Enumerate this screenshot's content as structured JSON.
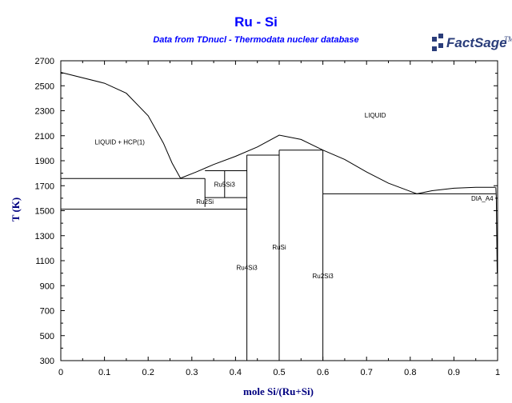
{
  "header": {
    "title": "Ru - Si",
    "subtitle": "Data from TDnucl - Thermodata nuclear database",
    "logo_text": "FactSage",
    "logo_mark": "TM"
  },
  "chart_data": {
    "type": "line",
    "title": "Ru - Si",
    "xlabel": "mole Si/(Ru+Si)",
    "ylabel": "T (K)",
    "xlim": [
      0,
      1
    ],
    "ylim": [
      300,
      2700
    ],
    "xticks": [
      "0",
      "0.1",
      "0.2",
      "0.3",
      "0.4",
      "0.5",
      "0.6",
      "0.7",
      "0.8",
      "0.9",
      "1"
    ],
    "yticks": [
      "300",
      "500",
      "700",
      "900",
      "1100",
      "1300",
      "1500",
      "1700",
      "1900",
      "2100",
      "2300",
      "2500",
      "2700"
    ],
    "grid": false,
    "series": [
      {
        "points": [
          [
            0,
            2607
          ],
          [
            0.1,
            2520
          ],
          [
            0.15,
            2440
          ],
          [
            0.2,
            2260
          ],
          [
            0.235,
            2040
          ],
          [
            0.255,
            1880
          ],
          [
            0.274,
            1760
          ]
        ]
      },
      {
        "points": [
          [
            0.274,
            1760
          ],
          [
            0.31,
            1810
          ],
          [
            0.35,
            1870
          ],
          [
            0.4,
            1935
          ],
          [
            0.45,
            2010
          ],
          [
            0.5,
            2105
          ],
          [
            0.55,
            2070
          ],
          [
            0.6,
            1985
          ],
          [
            0.65,
            1910
          ],
          [
            0.7,
            1810
          ],
          [
            0.75,
            1720
          ],
          [
            0.8,
            1655
          ],
          [
            0.815,
            1635
          ],
          [
            0.85,
            1660
          ],
          [
            0.9,
            1680
          ],
          [
            0.95,
            1687
          ],
          [
            0.995,
            1687
          ]
        ]
      },
      {
        "points": [
          [
            0.996,
            1687
          ],
          [
            0.997,
            1600
          ],
          [
            0.999,
            1000
          ]
        ]
      },
      {
        "points": [
          [
            0,
            1758
          ],
          [
            0.33,
            1758
          ]
        ]
      },
      {
        "points": [
          [
            0,
            1512
          ],
          [
            0.426,
            1512
          ]
        ]
      },
      {
        "points": [
          [
            0.33,
            1820
          ],
          [
            0.426,
            1820
          ]
        ]
      },
      {
        "points": [
          [
            0.33,
            1758
          ],
          [
            0.33,
            1530
          ]
        ]
      },
      {
        "points": [
          [
            0.375,
            1820
          ],
          [
            0.375,
            1605
          ]
        ]
      },
      {
        "points": [
          [
            0.33,
            1605
          ],
          [
            0.426,
            1605
          ]
        ]
      },
      {
        "points": [
          [
            0.426,
            1945
          ],
          [
            0.426,
            300
          ]
        ]
      },
      {
        "points": [
          [
            0.426,
            1945
          ],
          [
            0.5,
            1945
          ]
        ]
      },
      {
        "points": [
          [
            0.5,
            1985
          ],
          [
            0.5,
            300
          ]
        ]
      },
      {
        "points": [
          [
            0.5,
            1985
          ],
          [
            0.6,
            1985
          ]
        ]
      },
      {
        "points": [
          [
            0.6,
            1985
          ],
          [
            0.6,
            300
          ]
        ]
      },
      {
        "points": [
          [
            0.6,
            1635
          ],
          [
            0.996,
            1635
          ]
        ]
      }
    ],
    "annotations": [
      {
        "text": "LIQUID",
        "x": 0.72,
        "y": 2265
      },
      {
        "text": "LIQUID + HCP(1)",
        "x": 0.135,
        "y": 2050
      },
      {
        "text": "Ru5Si3",
        "x": 0.375,
        "y": 1712
      },
      {
        "text": "Ru2Si",
        "x": 0.33,
        "y": 1573
      },
      {
        "text": "RuSi",
        "x": 0.5,
        "y": 1208
      },
      {
        "text": "Ru4Si3",
        "x": 0.426,
        "y": 1045
      },
      {
        "text": "Ru2Si3",
        "x": 0.6,
        "y": 980
      },
      {
        "text": "DIA_A4",
        "x": 0.99,
        "y": 1598
      }
    ]
  }
}
